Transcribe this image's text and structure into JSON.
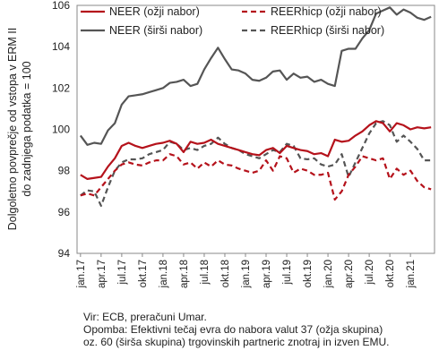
{
  "chart_data": {
    "type": "line",
    "ylabel_line1": "Dolgoletno povprečje od vstopa v ERM II",
    "ylabel_line2": "do zadnjega podatka = 100",
    "ylim": [
      94,
      106
    ],
    "yticks": [
      94,
      96,
      98,
      100,
      102,
      104,
      106
    ],
    "grid": false,
    "legend_position": "top",
    "x_tick_labels": [
      "jan.17",
      "apr.17",
      "jul.17",
      "okt.17",
      "jan.18",
      "apr.18",
      "jul.18",
      "okt.18",
      "jan.19",
      "apr.19",
      "jul.19",
      "okt.19",
      "jan.20",
      "apr.20",
      "jul.20",
      "okt.20",
      "jan.21"
    ],
    "x": [
      "2017-01",
      "2017-02",
      "2017-03",
      "2017-04",
      "2017-05",
      "2017-06",
      "2017-07",
      "2017-08",
      "2017-09",
      "2017-10",
      "2017-11",
      "2017-12",
      "2018-01",
      "2018-02",
      "2018-03",
      "2018-04",
      "2018-05",
      "2018-06",
      "2018-07",
      "2018-08",
      "2018-09",
      "2018-10",
      "2018-11",
      "2018-12",
      "2019-01",
      "2019-02",
      "2019-03",
      "2019-04",
      "2019-05",
      "2019-06",
      "2019-07",
      "2019-08",
      "2019-09",
      "2019-10",
      "2019-11",
      "2019-12",
      "2020-01",
      "2020-02",
      "2020-03",
      "2020-04",
      "2020-05",
      "2020-06",
      "2020-07",
      "2020-08",
      "2020-09",
      "2020-10",
      "2020-11",
      "2020-12",
      "2021-01",
      "2021-02",
      "2021-03",
      "2021-04"
    ],
    "series": [
      {
        "name": "NEER (ožji nabor)",
        "color": "#b5121b",
        "dash": "solid",
        "values": [
          97.8,
          97.6,
          97.65,
          97.7,
          98.2,
          98.6,
          99.2,
          99.35,
          99.2,
          99.1,
          99.2,
          99.3,
          99.35,
          99.45,
          99.3,
          98.9,
          99.4,
          99.3,
          99.35,
          99.5,
          99.3,
          99.2,
          99.1,
          99.0,
          98.9,
          98.8,
          98.75,
          99.0,
          99.1,
          98.85,
          99.2,
          99.1,
          99.0,
          98.95,
          98.8,
          98.85,
          98.7,
          99.5,
          99.4,
          99.45,
          99.7,
          99.9,
          100.2,
          100.4,
          100.3,
          99.9,
          100.3,
          100.2,
          100.0,
          100.1,
          100.05,
          100.1
        ]
      },
      {
        "name": "REERhicp (ožji nabor)",
        "color": "#b5121b",
        "dash": "dashed",
        "values": [
          96.8,
          96.9,
          96.8,
          97.2,
          97.6,
          98.0,
          98.3,
          98.4,
          98.3,
          98.25,
          98.4,
          98.5,
          98.5,
          98.8,
          98.7,
          98.3,
          98.4,
          98.1,
          98.4,
          98.2,
          98.5,
          98.3,
          98.25,
          98.1,
          98.0,
          97.9,
          98.0,
          98.5,
          98.0,
          98.7,
          98.6,
          97.9,
          98.1,
          98.0,
          97.8,
          97.8,
          97.9,
          96.6,
          97.0,
          97.8,
          98.2,
          98.7,
          98.6,
          98.5,
          98.6,
          97.6,
          98.1,
          97.8,
          98.0,
          97.5,
          97.2,
          97.1
        ]
      },
      {
        "name": "NEER (širši nabor)",
        "color": "#555555",
        "dash": "solid",
        "values": [
          99.7,
          99.25,
          99.35,
          99.3,
          99.95,
          100.3,
          101.2,
          101.6,
          101.65,
          101.7,
          101.8,
          101.9,
          102.0,
          102.25,
          102.3,
          102.4,
          102.1,
          102.2,
          102.9,
          103.45,
          103.95,
          103.4,
          102.9,
          102.85,
          102.7,
          102.4,
          102.35,
          102.5,
          102.8,
          102.85,
          102.4,
          102.7,
          102.5,
          102.55,
          102.3,
          102.4,
          102.2,
          102.1,
          103.8,
          103.9,
          103.9,
          104.4,
          104.8,
          105.6,
          105.75,
          105.9,
          105.55,
          105.8,
          105.65,
          105.4,
          105.3,
          105.45
        ]
      },
      {
        "name": "REERhicp (širši nabor)",
        "color": "#555555",
        "dash": "dashed",
        "values": [
          96.8,
          97.05,
          97.0,
          96.3,
          97.2,
          98.0,
          98.4,
          98.55,
          98.55,
          98.6,
          98.8,
          98.9,
          99.0,
          99.4,
          99.3,
          99.0,
          99.1,
          99.0,
          99.2,
          99.3,
          99.6,
          99.3,
          99.1,
          99.0,
          98.8,
          98.7,
          98.6,
          98.8,
          99.0,
          98.9,
          99.3,
          99.2,
          98.6,
          98.55,
          98.6,
          98.3,
          98.2,
          98.3,
          98.8,
          97.7,
          98.4,
          99.1,
          99.8,
          100.3,
          100.4,
          100.2,
          99.4,
          99.7,
          99.4,
          99.05,
          98.5,
          98.5
        ]
      }
    ]
  },
  "notes": {
    "source": "Vir: ECB, preračuni Umar.",
    "remark_line1": "Opomba: Efektivni tečaj evra do nabora valut 37 (ožja skupina)",
    "remark_line2": "oz. 60 (širša skupina) trgovinskih partneric znotraj in izven EMU."
  }
}
